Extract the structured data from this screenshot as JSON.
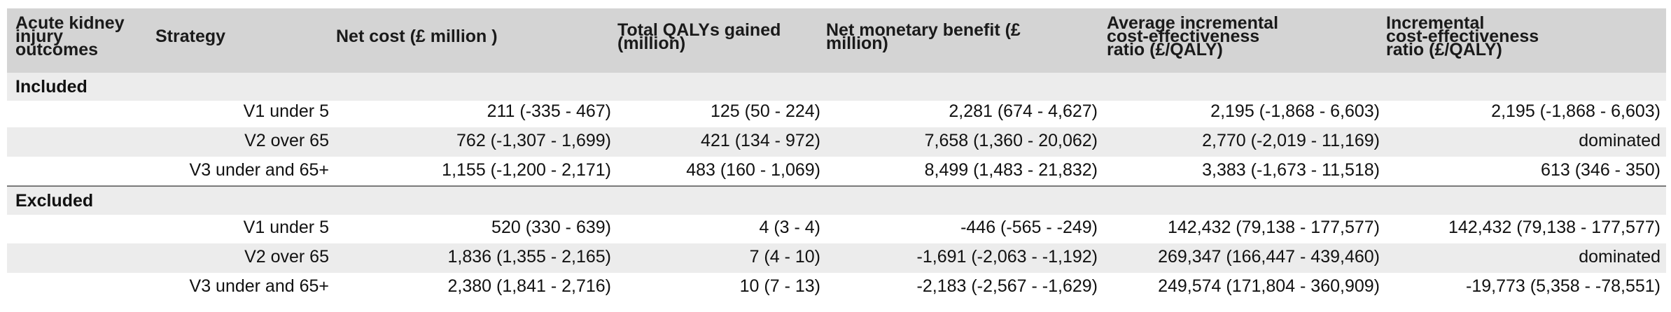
{
  "header": {
    "col1": [
      "Acute kidney",
      "injury",
      "outcomes"
    ],
    "col2": [
      "Strategy"
    ],
    "col3": [
      "Net cost (£ million )"
    ],
    "col4": [
      "Total QALYs gained",
      "(million)"
    ],
    "col5": [
      "Net monetary benefit (£",
      "million)"
    ],
    "col6": [
      "Average incremental",
      "cost-effectiveness",
      "ratio (£/QALY)"
    ],
    "col7": [
      "Incremental",
      "cost-effectiveness",
      "ratio (£/QALY)"
    ]
  },
  "groups": [
    {
      "label": "Included",
      "rows": [
        {
          "strategy": "V1 under 5",
          "net_cost": "211 (-335 - 467)",
          "qalys": "125 (50 - 224)",
          "nmb": "2,281 (674 - 4,627)",
          "aicer": "2,195 (-1,868 - 6,603)",
          "icer": "2,195 (-1,868 - 6,603)"
        },
        {
          "strategy": "V2 over 65",
          "net_cost": "762 (-1,307 - 1,699)",
          "qalys": "421 (134 - 972)",
          "nmb": "7,658 (1,360 - 20,062)",
          "aicer": "2,770 (-2,019 - 11,169)",
          "icer": "dominated"
        },
        {
          "strategy": "V3 under and 65+",
          "net_cost": "1,155 (-1,200 - 2,171)",
          "qalys": "483 (160 - 1,069)",
          "nmb": "8,499 (1,483 - 21,832)",
          "aicer": "3,383 (-1,673 - 11,518)",
          "icer": "613 (346 - 350)"
        }
      ]
    },
    {
      "label": "Excluded",
      "rows": [
        {
          "strategy": "V1 under 5",
          "net_cost": "520 (330 - 639)",
          "qalys": "4 (3 - 4)",
          "nmb": "-446 (-565 - -249)",
          "aicer": "142,432 (79,138 - 177,577)",
          "icer": "142,432 (79,138 - 177,577)"
        },
        {
          "strategy": "V2 over 65",
          "net_cost": "1,836 (1,355 - 2,165)",
          "qalys": "7 (4 - 10)",
          "nmb": "-1,691 (-2,063 - -1,192)",
          "aicer": "269,347 (166,447 - 439,460)",
          "icer": "dominated"
        },
        {
          "strategy": "V3 under and 65+",
          "net_cost": "2,380 (1,841 - 2,716)",
          "qalys": "10 (7 - 13)",
          "nmb": "-2,183 (-2,567 - -1,629)",
          "aicer": "249,574 (171,804 - 360,909)",
          "icer": "-19,773 (5,358 - -78,551)"
        }
      ]
    }
  ]
}
